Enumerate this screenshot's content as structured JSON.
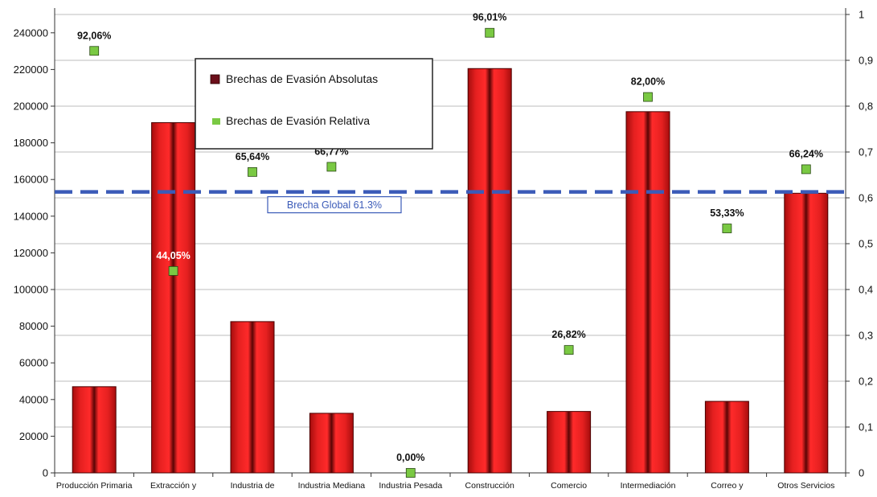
{
  "chart_data": {
    "type": "bar",
    "categories": [
      "Producción Primaria",
      "Extracción y",
      "Industria de",
      "Industria Mediana",
      "Industria Pesada",
      "Construcción",
      "Comercio",
      "Intermediación",
      "Correo y",
      "Otros Servicios"
    ],
    "series": [
      {
        "name": "Brechas de Evasión Absolutas",
        "type": "bar",
        "axis": "left",
        "color": "#d91a1a",
        "values": [
          47000,
          191000,
          82500,
          32500,
          0,
          220500,
          33500,
          197000,
          39000,
          152500
        ]
      },
      {
        "name": "Brechas de Evasión Relativa",
        "type": "scatter",
        "axis": "right",
        "color": "#7ac943",
        "values": [
          0.9206,
          0.4405,
          0.6564,
          0.6677,
          0.0,
          0.9601,
          0.2682,
          0.82,
          0.5333,
          0.6624
        ],
        "labels": [
          "92,06%",
          "44,05%",
          "65,64%",
          "66,77%",
          "0,00%",
          "96,01%",
          "26,82%",
          "82,00%",
          "53,33%",
          "66,24%"
        ]
      }
    ],
    "reference_line": {
      "label": "Brecha Global 61.3%",
      "value": 0.613,
      "axis": "right",
      "color": "#3b5bb8",
      "style": "dashed"
    },
    "left_axis": {
      "ylim": [
        0,
        250000
      ],
      "ticks": [
        "0",
        "20000",
        "40000",
        "60000",
        "80000",
        "100000",
        "120000",
        "140000",
        "160000",
        "180000",
        "200000",
        "220000",
        "240000"
      ],
      "tick_values": [
        0,
        20000,
        40000,
        60000,
        80000,
        100000,
        120000,
        140000,
        160000,
        180000,
        200000,
        220000,
        240000
      ]
    },
    "right_axis": {
      "ylim": [
        0,
        1
      ],
      "ticks": [
        "0",
        "0,1",
        "0,2",
        "0,3",
        "0,4",
        "0,5",
        "0,6",
        "0,7",
        "0,8",
        "0,9",
        "1"
      ],
      "tick_values": [
        0,
        0.1,
        0.2,
        0.3,
        0.4,
        0.5,
        0.6,
        0.7,
        0.8,
        0.9,
        1
      ]
    },
    "grid": true,
    "legend_position": "top-left"
  }
}
